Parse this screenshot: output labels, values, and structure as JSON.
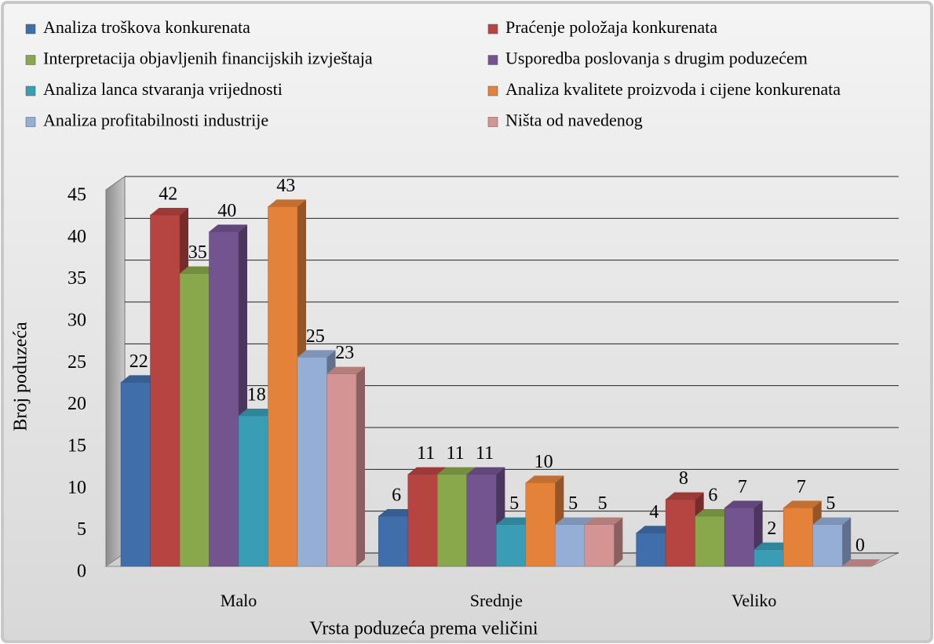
{
  "chart_data": {
    "type": "bar3d",
    "categories": [
      "Malo",
      "Srednje",
      "Veliko"
    ],
    "x_label": "Vrsta poduzeća prema veličini",
    "y_label": "Broj poduzeća",
    "ylim": [
      0,
      45
    ],
    "yticks": [
      0,
      5,
      10,
      15,
      20,
      25,
      30,
      35,
      40,
      45
    ],
    "grid": true,
    "legend": "top",
    "series": [
      {
        "name": "Analiza troškova konkurenata",
        "color": "#3f6eab",
        "values": [
          22,
          6,
          4
        ]
      },
      {
        "name": "Praćenje položaja konkurenata",
        "color": "#b64441",
        "values": [
          42,
          11,
          8
        ]
      },
      {
        "name": "Interpretacija objavljenih financijskih izvještaja",
        "color": "#89a74b",
        "values": [
          35,
          11,
          6
        ]
      },
      {
        "name": "Usporedba poslovanja s drugim poduzećem",
        "color": "#73548f",
        "values": [
          40,
          11,
          7
        ]
      },
      {
        "name": "Analiza lanca stvaranja vrijednosti",
        "color": "#3a9db6",
        "values": [
          18,
          5,
          2
        ]
      },
      {
        "name": "Analiza kvalitete proizvoda i cijene konkurenata",
        "color": "#e5823a",
        "values": [
          43,
          10,
          7
        ]
      },
      {
        "name": "Analiza profitabilnosti industrije",
        "color": "#95aed6",
        "values": [
          25,
          5,
          5
        ]
      },
      {
        "name": "Ništa od navedenog",
        "color": "#d49493",
        "values": [
          23,
          5,
          0
        ]
      }
    ]
  }
}
